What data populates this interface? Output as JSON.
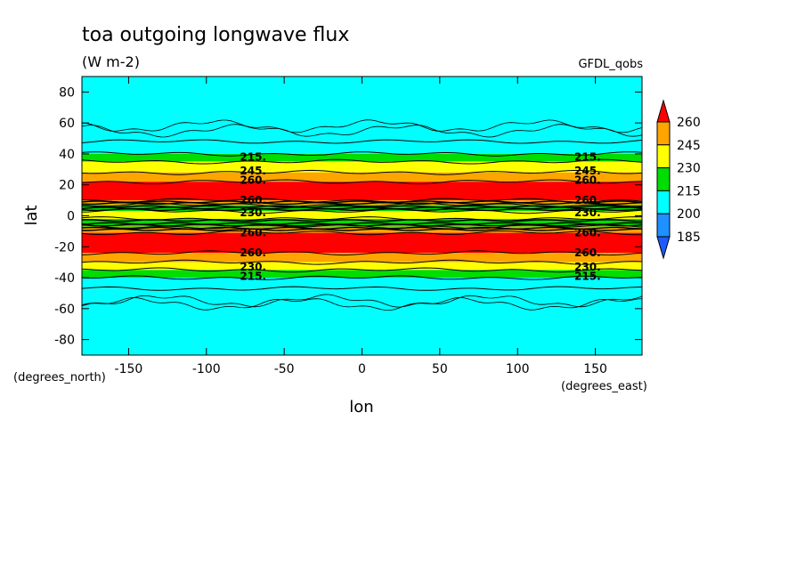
{
  "chart_data": {
    "type": "heatmap",
    "title": "toa outgoing longwave flux",
    "units": "(W m-2)",
    "model": "GFDL_qobs",
    "xlabel": "lon",
    "ylabel": "lat",
    "x_units": "(degrees_east)",
    "y_units": "(degrees_north)",
    "xlim": [
      -180,
      180
    ],
    "ylim": [
      -90,
      90
    ],
    "xticks": [
      "-150",
      "-100",
      "-50",
      "0",
      "50",
      "100",
      "150"
    ],
    "yticks": [
      "80",
      "60",
      "40",
      "20",
      "0",
      "-20",
      "-40",
      "-60",
      "-80"
    ],
    "colorbar": {
      "levels": [
        "260",
        "245",
        "230",
        "215",
        "200",
        "185"
      ],
      "colors": [
        "#ff0000",
        "#ffa500",
        "#ffff00",
        "#00dd00",
        "#00ffff",
        "#1e90ff",
        "#1e5aff"
      ]
    },
    "zonal_bands": [
      {
        "lat_min": 48,
        "lat_max": 90,
        "value": 205
      },
      {
        "lat_min": 40,
        "lat_max": 48,
        "value": 205
      },
      {
        "lat_min": 35,
        "lat_max": 40,
        "value": 220
      },
      {
        "lat_min": 28,
        "lat_max": 35,
        "value": 235
      },
      {
        "lat_min": 22,
        "lat_max": 28,
        "value": 250
      },
      {
        "lat_min": 10,
        "lat_max": 22,
        "value": 265
      },
      {
        "lat_min": 7,
        "lat_max": 10,
        "value": 250
      },
      {
        "lat_min": 3,
        "lat_max": 7,
        "value": 225
      },
      {
        "lat_min": -2,
        "lat_max": 3,
        "value": 232
      },
      {
        "lat_min": -7,
        "lat_max": -2,
        "value": 222
      },
      {
        "lat_min": -11,
        "lat_max": -7,
        "value": 250
      },
      {
        "lat_min": -24,
        "lat_max": -11,
        "value": 265
      },
      {
        "lat_min": -30,
        "lat_max": -24,
        "value": 250
      },
      {
        "lat_min": -35,
        "lat_max": -30,
        "value": 235
      },
      {
        "lat_min": -40,
        "lat_max": -35,
        "value": 220
      },
      {
        "lat_min": -47,
        "lat_max": -40,
        "value": 205
      },
      {
        "lat_min": -90,
        "lat_max": -47,
        "value": 205
      }
    ],
    "contour_labels": [
      {
        "text": "215.",
        "lon": -70,
        "lat": 38
      },
      {
        "text": "215.",
        "lon": 145,
        "lat": 38
      },
      {
        "text": "245.",
        "lon": -70,
        "lat": 29
      },
      {
        "text": "245.",
        "lon": 145,
        "lat": 29
      },
      {
        "text": "260.",
        "lon": -70,
        "lat": 23
      },
      {
        "text": "260.",
        "lon": 145,
        "lat": 23
      },
      {
        "text": "260.",
        "lon": -70,
        "lat": 10
      },
      {
        "text": "260.",
        "lon": 145,
        "lat": 10
      },
      {
        "text": "230.",
        "lon": -70,
        "lat": 2
      },
      {
        "text": "230.",
        "lon": 145,
        "lat": 2
      },
      {
        "text": "260.",
        "lon": -70,
        "lat": -11
      },
      {
        "text": "260.",
        "lon": 145,
        "lat": -11
      },
      {
        "text": "260.",
        "lon": -70,
        "lat": -24
      },
      {
        "text": "260.",
        "lon": 145,
        "lat": -24
      },
      {
        "text": "230.",
        "lon": -70,
        "lat": -33
      },
      {
        "text": "230.",
        "lon": 145,
        "lat": -33
      },
      {
        "text": "215.",
        "lon": -70,
        "lat": -39
      },
      {
        "text": "215.",
        "lon": 145,
        "lat": -39
      }
    ]
  }
}
